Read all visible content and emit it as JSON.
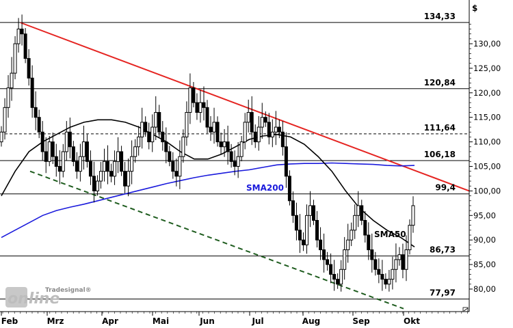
{
  "chart_data": {
    "type": "candlestick",
    "currency": "$",
    "ylim": [
      75,
      138
    ],
    "y_ticks": [
      80,
      85,
      90,
      95,
      100,
      105,
      110,
      115,
      120,
      125,
      130
    ],
    "y_tick_labels": [
      "80,00",
      "85,00",
      "90,00",
      "95,00",
      "100,00",
      "105,00",
      "110,00",
      "115,00",
      "120,00",
      "125,00",
      "130,00"
    ],
    "x_labels": [
      "Feb",
      "Mrz",
      "Apr",
      "Mai",
      "Jun",
      "Jul",
      "Aug",
      "Sep",
      "Okt"
    ],
    "levels": [
      {
        "value": 134.33,
        "label": "134,33",
        "style": "solid"
      },
      {
        "value": 120.84,
        "label": "120,84",
        "style": "solid"
      },
      {
        "value": 111.64,
        "label": "111,64",
        "style": "dashed"
      },
      {
        "value": 106.18,
        "label": "106,18",
        "style": "solid"
      },
      {
        "value": 99.4,
        "label": "99,4",
        "style": "solid"
      },
      {
        "value": 86.73,
        "label": "86,73",
        "style": "solid"
      },
      {
        "value": 77.97,
        "label": "77,97",
        "style": "solid"
      }
    ],
    "indicators": [
      {
        "name": "SMA200",
        "color": "#1a1adc"
      },
      {
        "name": "SMA50",
        "color": "#000000"
      }
    ],
    "trendlines": [
      {
        "color": "#e52421",
        "style": "solid",
        "from": {
          "x": "Feb",
          "y": 134.3
        },
        "to": {
          "x": "Okt",
          "y": 100.0
        }
      },
      {
        "color": "#1e5c1e",
        "style": "dashed",
        "from": {
          "x": "Feb",
          "y": 104.0
        },
        "to": {
          "x": "Okt",
          "y": 76.0
        }
      }
    ],
    "price_series": [
      112,
      117,
      121,
      124,
      130,
      133,
      132,
      127,
      123,
      117,
      115,
      112,
      108,
      106,
      110,
      107,
      105,
      104,
      108,
      112,
      109,
      106,
      104,
      107,
      110,
      106,
      103,
      100,
      102,
      104,
      106,
      104,
      103,
      106,
      108,
      104,
      101,
      104,
      107,
      109,
      111,
      114,
      112,
      110,
      113,
      116,
      112,
      110,
      108,
      106,
      104,
      103,
      107,
      111,
      116,
      121,
      118,
      116,
      118,
      117,
      113,
      112,
      114,
      110,
      109,
      110,
      108,
      106,
      105,
      107,
      110,
      114,
      116,
      112,
      110,
      113,
      115,
      114,
      111,
      112,
      113,
      112,
      109,
      103,
      98,
      95,
      92,
      90,
      89,
      95,
      97,
      94,
      90,
      88,
      86,
      85,
      83,
      82,
      81,
      84,
      88,
      90,
      92,
      95,
      97,
      94,
      91,
      88,
      86,
      84,
      83,
      82,
      81,
      82,
      84,
      86,
      87,
      84,
      88,
      93,
      97
    ],
    "sma50_series": [
      99,
      104,
      108,
      110,
      111.5,
      113,
      114,
      114.5,
      114.5,
      114,
      113,
      111.5,
      110,
      108,
      106.5,
      106.5,
      107.5,
      109,
      110.5,
      111.2,
      111.5,
      111,
      109.5,
      107,
      104,
      100,
      96.5,
      94,
      92,
      90.5,
      88.6
    ],
    "sma200_series": [
      90.5,
      92,
      93.5,
      95,
      96,
      96.7,
      97.3,
      98,
      98.7,
      99.4,
      100.1,
      100.8,
      101.5,
      102.1,
      102.7,
      103.2,
      103.6,
      104,
      104.3,
      104.8,
      105.3,
      105.5,
      105.6,
      105.6,
      105.7,
      105.6,
      105.5,
      105.4,
      105.2,
      105.1,
      105.2
    ]
  },
  "watermark": {
    "brand": "Tradesignal®",
    "logo": "online"
  }
}
